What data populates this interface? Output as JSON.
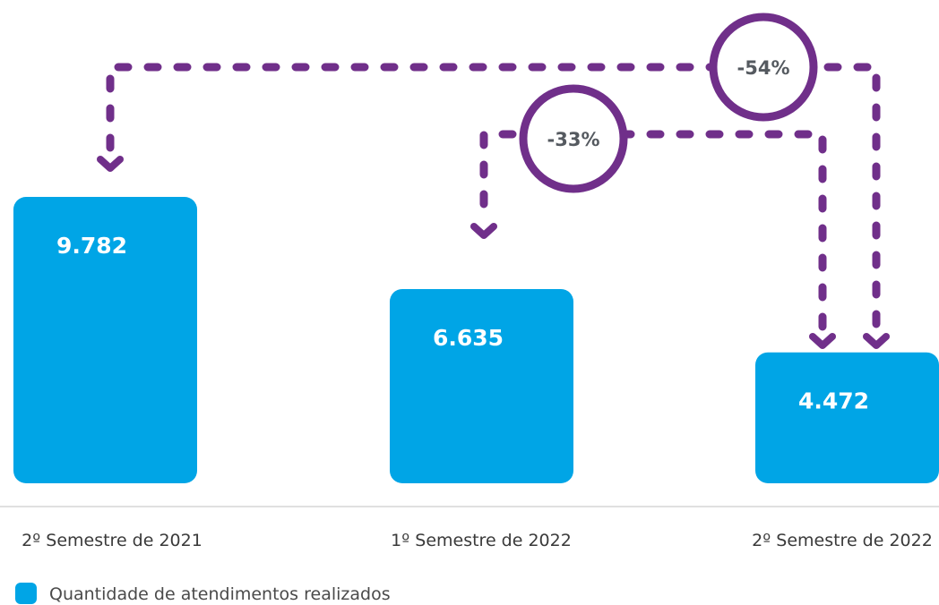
{
  "colors": {
    "bar": "#00a5e6",
    "accent": "#702f8a",
    "axis": "#d6d6d6"
  },
  "chart_data": {
    "type": "bar",
    "categories": [
      "2º Semestre de 2021",
      "1º Semestre de 2022",
      "2º Semestre de 2022"
    ],
    "series": [
      {
        "name": "Quantidade de atendimentos realizados",
        "values": [
          9782,
          6635,
          4472
        ],
        "labels": [
          "9.782",
          "6.635",
          "4.472"
        ]
      }
    ],
    "annotations": [
      {
        "text": "-33%",
        "from": 1,
        "to": 2
      },
      {
        "text": "-54%",
        "from": 0,
        "to": 2
      }
    ],
    "legend": "bottom-left",
    "grid": false
  }
}
